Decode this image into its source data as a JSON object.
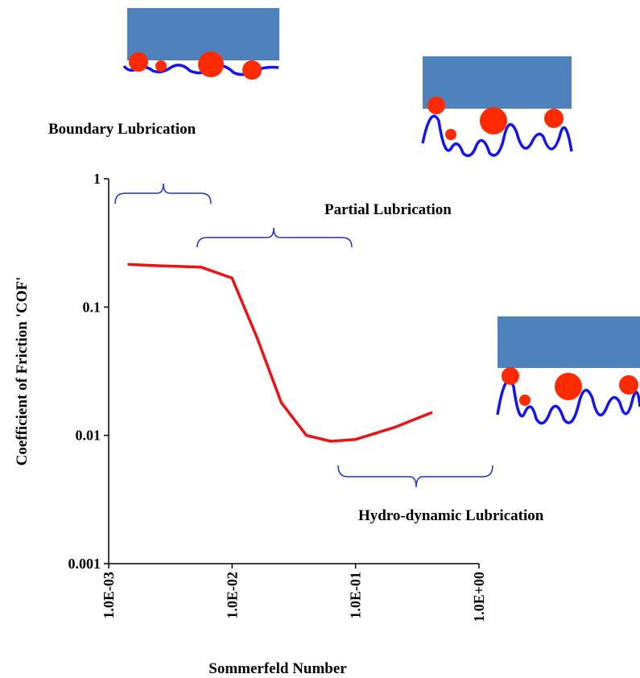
{
  "chart_data": {
    "type": "line",
    "x_label": "Sommerfeld Number",
    "y_label": "Coefficient of Friction 'COF'",
    "annotations": [
      "Boundary Lubrication",
      "Partial Lubrication",
      "Hydro-dynamic Lubrication"
    ],
    "x": [
      0.00146,
      0.0025,
      0.0056,
      0.01,
      0.016,
      0.025,
      0.04,
      0.063,
      0.1,
      0.21,
      0.41
    ],
    "series": [
      {
        "color": "#ee1111",
        "values": [
          0.215,
          0.21,
          0.205,
          0.168,
          0.057,
          0.018,
          0.01,
          0.009,
          0.0093,
          0.0116,
          0.015
        ]
      }
    ],
    "xlim": [
      0.001,
      1
    ],
    "ylim": [
      0.001,
      1
    ],
    "xscale": "log",
    "yscale": "log",
    "xticks": [
      {
        "value": 0.001,
        "label": "1.0E-03"
      },
      {
        "value": 0.01,
        "label": "1.0E-02"
      },
      {
        "value": 0.1,
        "label": "1.0E-01"
      },
      {
        "value": 1,
        "label": "1.0E+00"
      }
    ],
    "yticks": [
      1,
      0.1,
      0.01,
      0.001
    ],
    "grid": false
  }
}
